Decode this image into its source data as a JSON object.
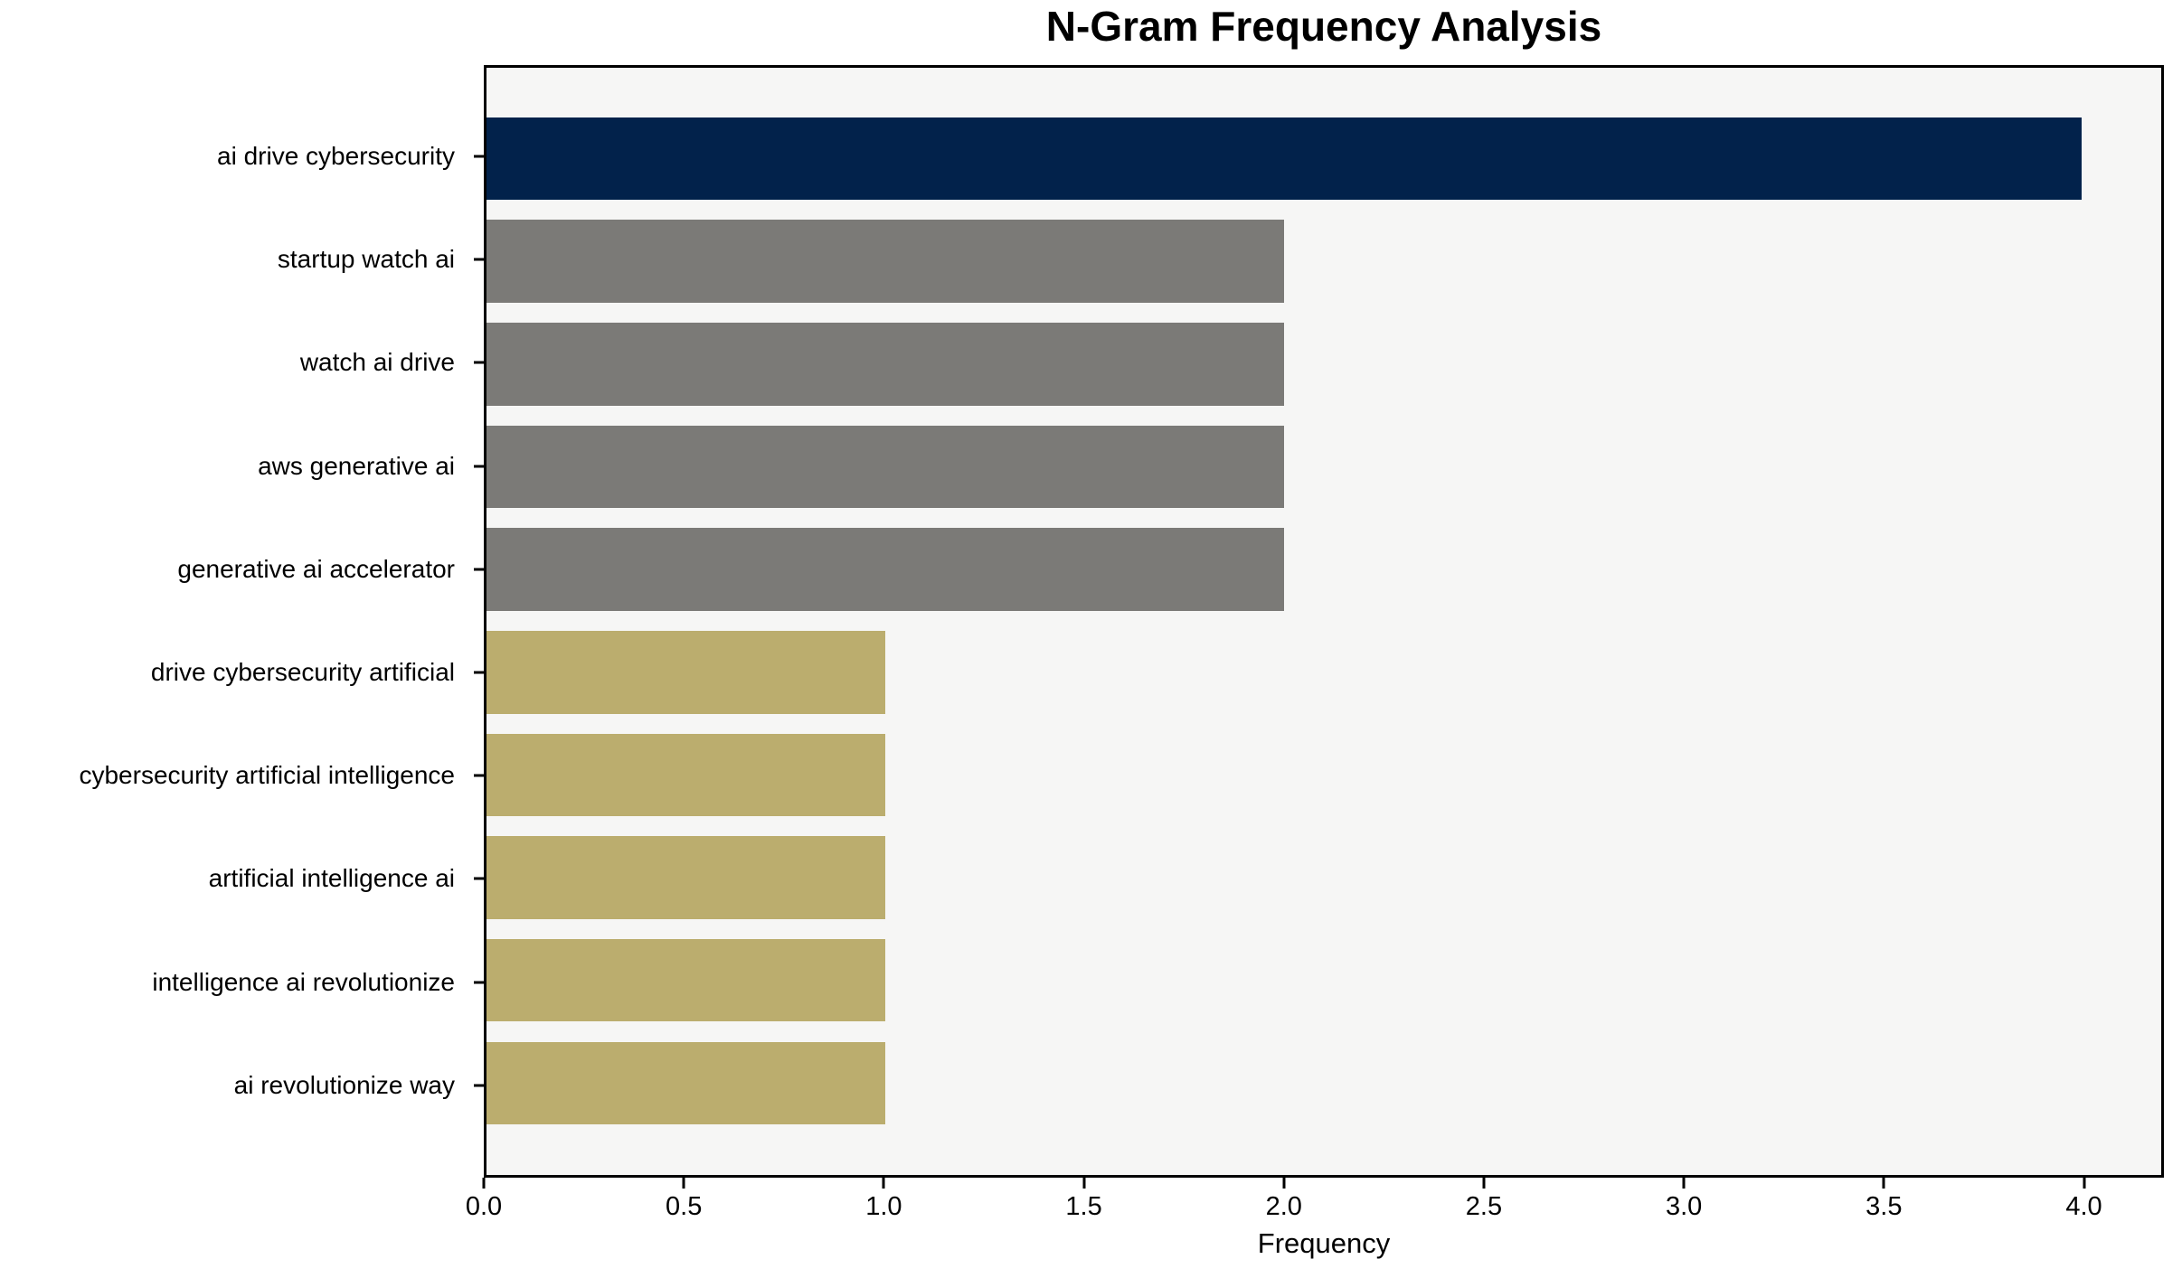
{
  "chart_data": {
    "type": "bar",
    "orientation": "horizontal",
    "title": "N-Gram Frequency Analysis",
    "xlabel": "Frequency",
    "ylabel": "",
    "categories": [
      "ai drive cybersecurity",
      "startup watch ai",
      "watch ai drive",
      "aws generative ai",
      "generative ai accelerator",
      "drive cybersecurity artificial",
      "cybersecurity artificial intelligence",
      "artificial intelligence ai",
      "intelligence ai revolutionize",
      "ai revolutionize way"
    ],
    "values": [
      4,
      2,
      2,
      2,
      2,
      1,
      1,
      1,
      1,
      1
    ],
    "bar_colors": [
      "#02224b",
      "#7b7a77",
      "#7b7a77",
      "#7b7a77",
      "#7b7a77",
      "#bbad6e",
      "#bbad6e",
      "#bbad6e",
      "#bbad6e",
      "#bbad6e"
    ],
    "xlim": [
      0,
      4.2
    ],
    "xticks": [
      "0.0",
      "0.5",
      "1.0",
      "1.5",
      "2.0",
      "2.5",
      "3.0",
      "3.5",
      "4.0"
    ],
    "grid": false,
    "legend_position": "none",
    "plot_background": "#f6f6f5"
  },
  "colors": {
    "navy": "#02224b",
    "gray": "#7b7a77",
    "khaki": "#bbad6e",
    "axes_background": "#f6f6f5",
    "figure_background": "#ffffff",
    "axis_line": "#000000"
  }
}
